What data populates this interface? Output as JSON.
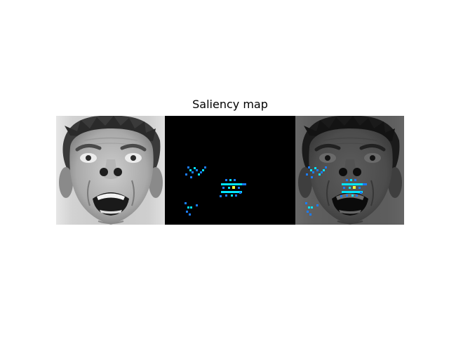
{
  "figure": {
    "title": "Saliency map"
  },
  "panels": [
    {
      "name": "original-face",
      "kind": "grayscale-photo"
    },
    {
      "name": "saliency-heatmap",
      "kind": "heatmap",
      "background": "#000000",
      "colormap": "jet"
    },
    {
      "name": "overlay",
      "kind": "heatmap-over-darkened-photo"
    }
  ],
  "colors": {
    "figure_background": "#ffffff",
    "heatmap_background": "#000000",
    "salient_low": "#1a7cff",
    "salient_mid": "#00e5ff",
    "salient_high": "#f5ff3a"
  }
}
